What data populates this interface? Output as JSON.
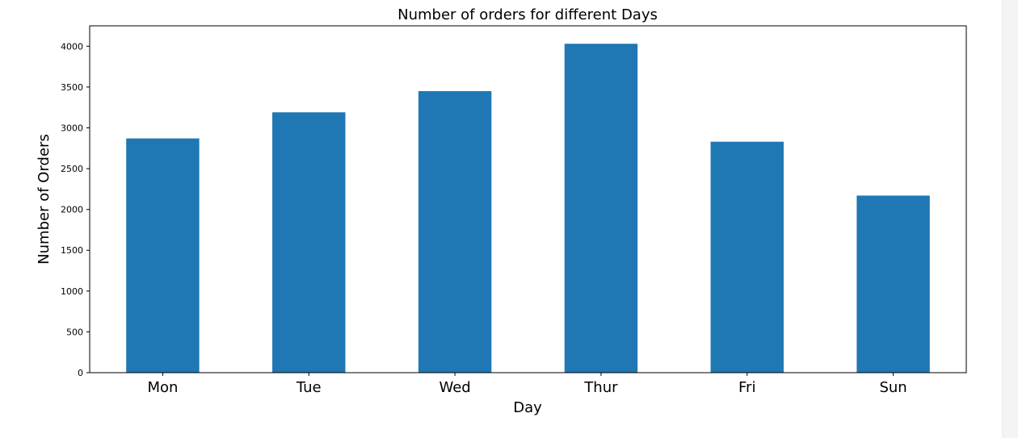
{
  "chart_data": {
    "type": "bar",
    "title": "Number of orders for different Days",
    "xlabel": "Day",
    "ylabel": "Number of Orders",
    "categories": [
      "Mon",
      "Tue",
      "Wed",
      "Thur",
      "Fri",
      "Sun"
    ],
    "values": [
      2870,
      3190,
      3450,
      4030,
      2830,
      2170
    ],
    "ylim": [
      0,
      4250
    ],
    "yticks": [
      0,
      500,
      1000,
      1500,
      2000,
      2500,
      3000,
      3500,
      4000
    ],
    "bar_color": "#1f77b4",
    "grid": false,
    "legend": "none"
  }
}
